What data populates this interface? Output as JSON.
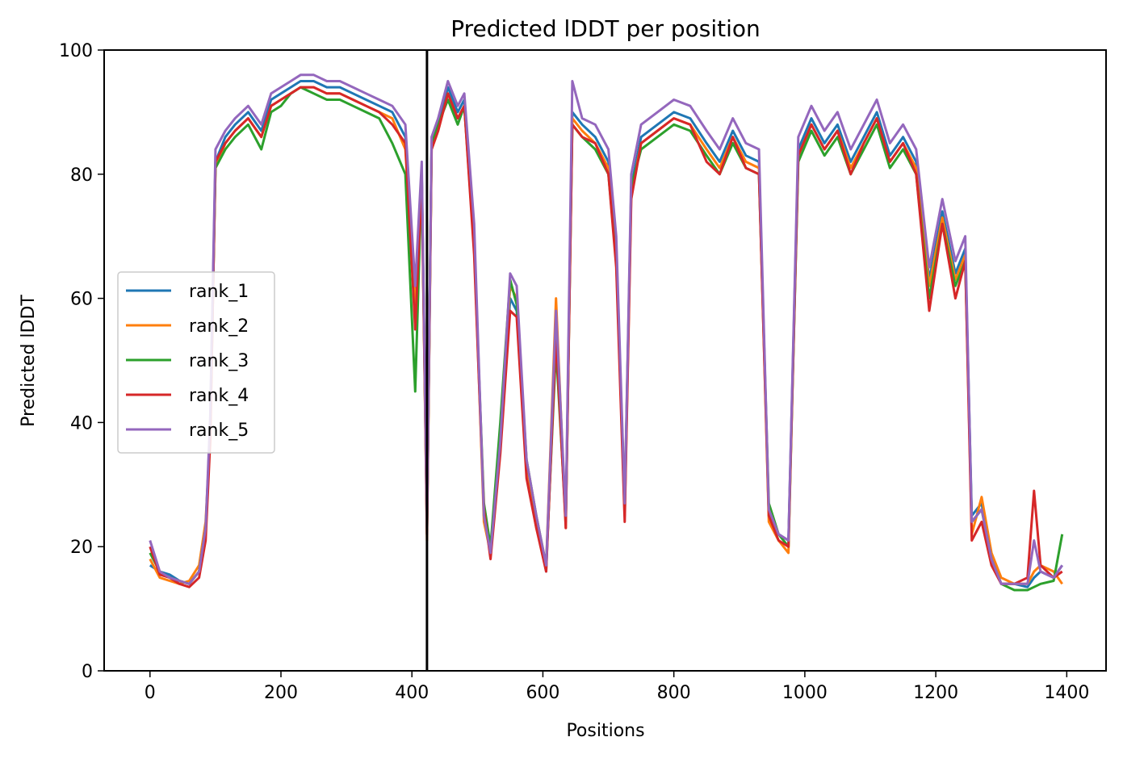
{
  "chart_data": {
    "type": "line",
    "title": "Predicted lDDT per position",
    "xlabel": "Positions",
    "ylabel": "Predicted lDDT",
    "xlim": [
      -70,
      1460
    ],
    "ylim": [
      0,
      100
    ],
    "xticks": [
      0,
      200,
      400,
      600,
      800,
      1000,
      1200,
      1400
    ],
    "yticks": [
      0,
      20,
      40,
      60,
      80,
      100
    ],
    "xtick_labels": [
      "0",
      "200",
      "400",
      "600",
      "800",
      "1000",
      "1200",
      "1400"
    ],
    "ytick_labels": [
      "0",
      "20",
      "40",
      "60",
      "80",
      "100"
    ],
    "grid": false,
    "legend_position": "center-left",
    "vline_x": 423,
    "x": [
      0,
      15,
      30,
      45,
      60,
      75,
      85,
      92,
      100,
      115,
      130,
      150,
      170,
      185,
      200,
      215,
      230,
      250,
      270,
      290,
      310,
      330,
      350,
      370,
      390,
      405,
      415,
      423,
      430,
      440,
      455,
      470,
      480,
      495,
      510,
      520,
      535,
      550,
      560,
      575,
      590,
      605,
      620,
      635,
      645,
      660,
      680,
      700,
      712,
      725,
      735,
      750,
      775,
      800,
      825,
      850,
      870,
      890,
      910,
      930,
      945,
      960,
      975,
      990,
      1010,
      1030,
      1050,
      1070,
      1090,
      1110,
      1130,
      1150,
      1170,
      1190,
      1210,
      1230,
      1245,
      1255,
      1270,
      1285,
      1300,
      1320,
      1340,
      1350,
      1360,
      1380,
      1393
    ],
    "series": [
      {
        "name": "rank_1",
        "color": "#1f77b4",
        "values": [
          17,
          16,
          15.5,
          14.5,
          14,
          16,
          22,
          40,
          82,
          86,
          88,
          90,
          87,
          92,
          93,
          94,
          95,
          95,
          94,
          94,
          93,
          92,
          91,
          90,
          86,
          60,
          80,
          22,
          85,
          88,
          94,
          90,
          92,
          70,
          25,
          19,
          36,
          60,
          58,
          33,
          24,
          16,
          55,
          24,
          90,
          88,
          86,
          82,
          68,
          26,
          78,
          86,
          88,
          90,
          89,
          85,
          82,
          87,
          83,
          82,
          25,
          22,
          21,
          84,
          89,
          85,
          88,
          82,
          86,
          90,
          83,
          86,
          82,
          63,
          74,
          64,
          68,
          25,
          27,
          18,
          14,
          14,
          13.5,
          15,
          16,
          15,
          17
        ]
      },
      {
        "name": "rank_2",
        "color": "#ff7f0e",
        "values": [
          18,
          15,
          14.5,
          14,
          14.5,
          17,
          24,
          38,
          81,
          85,
          87,
          89,
          86,
          91,
          92,
          93,
          94,
          94,
          93,
          93,
          92,
          91,
          90,
          89,
          84,
          58,
          79,
          21,
          84,
          87,
          93,
          89,
          91,
          69,
          24,
          19,
          38,
          62,
          60,
          32,
          23,
          17,
          60,
          23,
          89,
          87,
          85,
          81,
          67,
          25,
          77,
          85,
          87,
          89,
          88,
          84,
          81,
          86,
          82,
          81,
          24,
          21,
          19,
          83,
          88,
          84,
          87,
          81,
          85,
          89,
          82,
          85,
          81,
          62,
          73,
          63,
          67,
          22,
          28,
          19,
          15,
          14,
          14,
          16,
          17,
          16,
          14
        ]
      },
      {
        "name": "rank_3",
        "color": "#2ca02c",
        "values": [
          19,
          16,
          15,
          14.5,
          14,
          16,
          23,
          39,
          81,
          84,
          86,
          88,
          84,
          90,
          91,
          93,
          94,
          93,
          92,
          92,
          91,
          90,
          89,
          85,
          80,
          45,
          80,
          23,
          85,
          88,
          92,
          88,
          91,
          68,
          27,
          20,
          40,
          63,
          59,
          34,
          25,
          17,
          52,
          24,
          88,
          86,
          84,
          80,
          66,
          27,
          78,
          84,
          86,
          88,
          87,
          83,
          80,
          85,
          81,
          80,
          27,
          22,
          20,
          82,
          87,
          83,
          86,
          80,
          84,
          88,
          81,
          84,
          80,
          60,
          72,
          62,
          66,
          24,
          26,
          18,
          14,
          13,
          13,
          13.5,
          14,
          14.5,
          22
        ]
      },
      {
        "name": "rank_4",
        "color": "#d62728",
        "values": [
          20,
          15.5,
          15,
          14,
          13.5,
          15,
          21,
          37,
          82,
          85,
          87,
          89,
          86,
          91,
          92,
          93,
          94,
          94,
          93,
          93,
          92,
          91,
          90,
          88,
          85,
          55,
          79,
          22,
          84,
          87,
          93,
          89,
          91,
          67,
          26,
          18,
          35,
          58,
          57,
          31,
          23,
          16,
          54,
          23,
          88,
          86,
          85,
          80,
          65,
          24,
          76,
          85,
          87,
          89,
          88,
          82,
          80,
          86,
          81,
          80,
          25,
          21,
          20,
          83,
          88,
          84,
          87,
          80,
          85,
          89,
          82,
          85,
          80,
          58,
          72,
          60,
          66,
          21,
          24,
          17,
          14,
          14,
          15,
          29,
          17,
          15,
          16
        ]
      },
      {
        "name": "rank_5",
        "color": "#9467bd",
        "values": [
          21,
          16,
          15,
          14.5,
          14,
          16,
          23,
          41,
          84,
          87,
          89,
          91,
          88,
          93,
          94,
          95,
          96,
          96,
          95,
          95,
          94,
          93,
          92,
          91,
          88,
          62,
          82,
          23,
          86,
          89,
          95,
          91,
          93,
          72,
          25,
          19,
          37,
          64,
          62,
          34,
          25,
          17,
          58,
          25,
          95,
          89,
          88,
          84,
          70,
          27,
          80,
          88,
          90,
          92,
          91,
          87,
          84,
          89,
          85,
          84,
          26,
          22,
          21,
          86,
          91,
          87,
          90,
          84,
          88,
          92,
          85,
          88,
          84,
          65,
          76,
          66,
          70,
          24,
          26,
          18,
          14,
          14,
          14,
          21,
          16,
          15,
          17
        ]
      }
    ]
  }
}
